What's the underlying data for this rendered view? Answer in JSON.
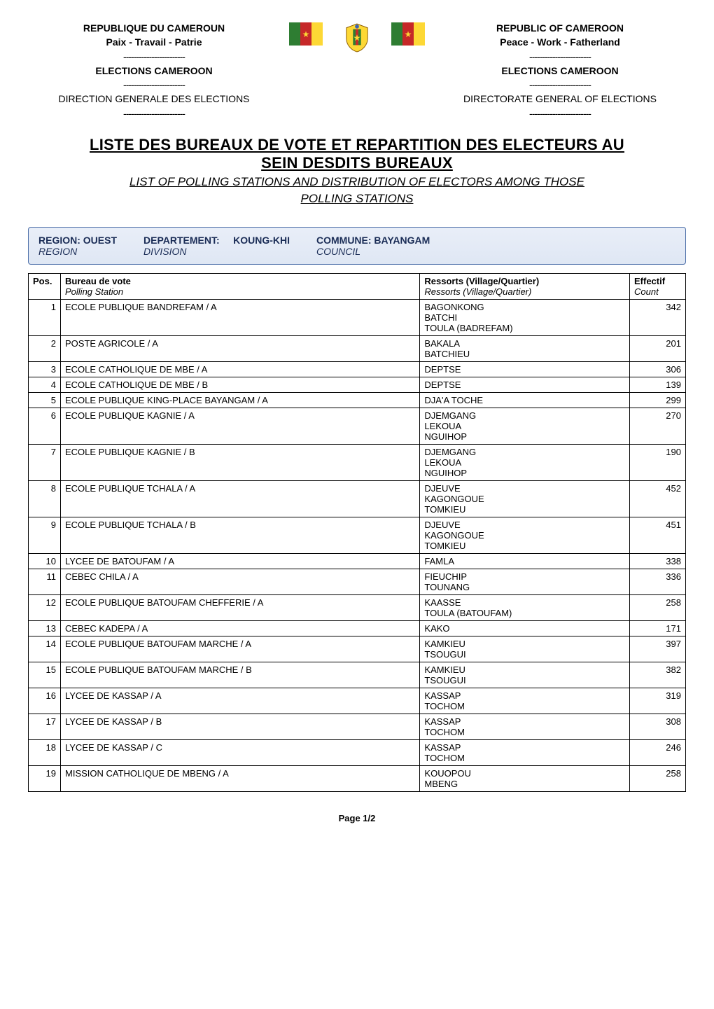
{
  "header": {
    "left": {
      "country": "REPUBLIQUE DU CAMEROUN",
      "motto": "Paix - Travail - Patrie",
      "sep": "------------------------",
      "org": "ELECTIONS CAMEROON",
      "dir": "DIRECTION GENERALE DES ELECTIONS"
    },
    "right": {
      "country": "REPUBLIC OF CAMEROON",
      "motto": "Peace - Work - Fatherland",
      "sep": "------------------------",
      "org": "ELECTIONS CAMEROON",
      "dir": "DIRECTORATE GENERAL OF ELECTIONS"
    }
  },
  "title": {
    "main_fr1": "LISTE DES BUREAUX DE VOTE ET REPARTITION DES ELECTEURS AU",
    "main_fr2": "SEIN DESDITS BUREAUX",
    "sub_en1": "LIST OF POLLING STATIONS AND DISTRIBUTION OF ELECTORS AMONG THOSE",
    "sub_en2": "POLLING STATIONS"
  },
  "meta": {
    "region_label": "REGION: OUEST",
    "region_it": "REGION",
    "dept_label_fr": "DEPARTEMENT:",
    "dept_value": "KOUNG-KHI",
    "dept_it": "DIVISION",
    "commune_label_fr": "COMMUNE: BAYANGAM",
    "commune_it": "COUNCIL"
  },
  "table": {
    "head": {
      "pos": "Pos.",
      "bureau_fr": "Bureau de vote",
      "bureau_en": "Polling Station",
      "ressorts_fr": "Ressorts (Village/Quartier)",
      "ressorts_en": "Ressorts (Village/Quartier)",
      "eff_fr": "Effectif",
      "eff_en": "Count"
    },
    "rows": [
      {
        "pos": 1,
        "bureau": "ECOLE PUBLIQUE BANDREFAM / A",
        "ressorts": [
          "BAGONKONG",
          "BATCHI",
          "TOULA (BADREFAM)"
        ],
        "eff": 342
      },
      {
        "pos": 2,
        "bureau": "POSTE AGRICOLE / A",
        "ressorts": [
          "BAKALA",
          "BATCHIEU"
        ],
        "eff": 201
      },
      {
        "pos": 3,
        "bureau": "ECOLE CATHOLIQUE DE MBE / A",
        "ressorts": [
          "DEPTSE"
        ],
        "eff": 306
      },
      {
        "pos": 4,
        "bureau": "ECOLE CATHOLIQUE DE MBE / B",
        "ressorts": [
          "DEPTSE"
        ],
        "eff": 139
      },
      {
        "pos": 5,
        "bureau": "ECOLE PUBLIQUE KING-PLACE BAYANGAM / A",
        "ressorts": [
          "DJA'A TOCHE"
        ],
        "eff": 299
      },
      {
        "pos": 6,
        "bureau": "ECOLE PUBLIQUE KAGNIE / A",
        "ressorts": [
          "DJEMGANG",
          "LEKOUA",
          "NGUIHOP"
        ],
        "eff": 270
      },
      {
        "pos": 7,
        "bureau": "ECOLE PUBLIQUE KAGNIE / B",
        "ressorts": [
          "DJEMGANG",
          "LEKOUA",
          "NGUIHOP"
        ],
        "eff": 190
      },
      {
        "pos": 8,
        "bureau": "ECOLE PUBLIQUE TCHALA / A",
        "ressorts": [
          "DJEUVE",
          "KAGONGOUE",
          "TOMKIEU"
        ],
        "eff": 452
      },
      {
        "pos": 9,
        "bureau": "ECOLE PUBLIQUE TCHALA / B",
        "ressorts": [
          "DJEUVE",
          "KAGONGOUE",
          "TOMKIEU"
        ],
        "eff": 451
      },
      {
        "pos": 10,
        "bureau": "LYCEE DE BATOUFAM / A",
        "ressorts": [
          "FAMLA"
        ],
        "eff": 338
      },
      {
        "pos": 11,
        "bureau": "CEBEC CHILA / A",
        "ressorts": [
          "FIEUCHIP",
          "TOUNANG"
        ],
        "eff": 336
      },
      {
        "pos": 12,
        "bureau": "ECOLE PUBLIQUE BATOUFAM CHEFFERIE / A",
        "ressorts": [
          "KAASSE",
          "TOULA (BATOUFAM)"
        ],
        "eff": 258
      },
      {
        "pos": 13,
        "bureau": "CEBEC KADEPA / A",
        "ressorts": [
          "KAKO"
        ],
        "eff": 171
      },
      {
        "pos": 14,
        "bureau": "ECOLE PUBLIQUE BATOUFAM MARCHE / A",
        "ressorts": [
          "KAMKIEU",
          "TSOUGUI"
        ],
        "eff": 397
      },
      {
        "pos": 15,
        "bureau": "ECOLE PUBLIQUE BATOUFAM MARCHE / B",
        "ressorts": [
          "KAMKIEU",
          "TSOUGUI"
        ],
        "eff": 382
      },
      {
        "pos": 16,
        "bureau": "LYCEE DE KASSAP / A",
        "ressorts": [
          "KASSAP",
          "TOCHOM"
        ],
        "eff": 319
      },
      {
        "pos": 17,
        "bureau": "LYCEE DE KASSAP / B",
        "ressorts": [
          "KASSAP",
          "TOCHOM"
        ],
        "eff": 308
      },
      {
        "pos": 18,
        "bureau": "LYCEE DE KASSAP / C",
        "ressorts": [
          "KASSAP",
          "TOCHOM"
        ],
        "eff": 246
      },
      {
        "pos": 19,
        "bureau": "MISSION CATHOLIQUE DE MBENG / A",
        "ressorts": [
          "KOUOPOU",
          "MBENG"
        ],
        "eff": 258
      }
    ]
  },
  "footer": {
    "page": "Page 1/2"
  },
  "colors": {
    "meta_bar_border": "#4a6da7",
    "meta_bar_bg_top": "#e9eef8",
    "meta_bar_bg_bottom": "#dfe7f4",
    "meta_bar_text": "#1a2c56",
    "table_border": "#000000",
    "flag_green": "#2e7d32",
    "flag_red": "#c62828",
    "flag_yellow": "#fdd835"
  }
}
